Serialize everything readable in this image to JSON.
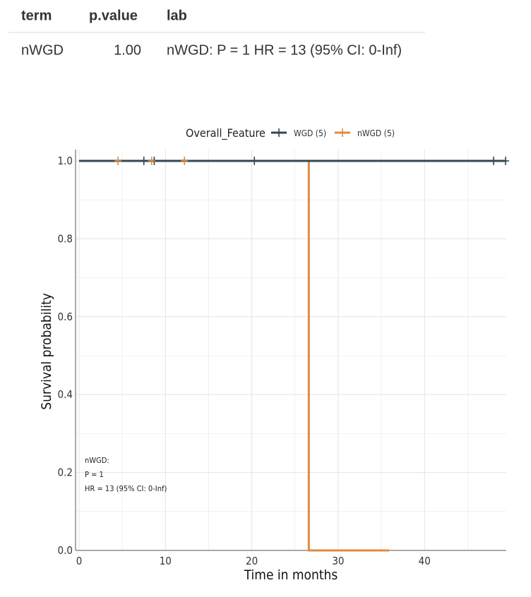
{
  "table": {
    "headers": {
      "term": "term",
      "p_value": "p.value",
      "lab": "lab"
    },
    "rows": [
      {
        "term": "nWGD",
        "p_value": "1.00",
        "lab": "nWGD: P = 1 HR = 13 (95% CI: 0-Inf)"
      }
    ]
  },
  "chart_data": {
    "type": "line",
    "subtype": "kaplan-meier step",
    "xlabel": "Time in months",
    "ylabel": "Survival probability",
    "xlim": [
      0,
      50
    ],
    "ylim": [
      0,
      1
    ],
    "x_ticks": [
      0,
      10,
      20,
      30,
      40
    ],
    "y_ticks": [
      0.0,
      0.2,
      0.4,
      0.6,
      0.8,
      1.0
    ],
    "y_tick_labels": [
      "0.0",
      "0.2",
      "0.4",
      "0.6",
      "0.8",
      "1.0"
    ],
    "grid": true,
    "legend": {
      "title": "Overall_Feature",
      "position": "top"
    },
    "series": [
      {
        "name": "WGD (5)",
        "color": "#34474f",
        "steps": [
          [
            0,
            1.0
          ],
          [
            50,
            1.0
          ]
        ],
        "censor_times": [
          7.5,
          8.7,
          20.3,
          48.0,
          50
        ]
      },
      {
        "name": "nWGD (5)",
        "color": "#e08b3e",
        "steps": [
          [
            0,
            1.0
          ],
          [
            26.6,
            1.0
          ],
          [
            26.6,
            0.0
          ],
          [
            35.9,
            0.0
          ]
        ],
        "censor_times": [
          4.5,
          8.4,
          12.2
        ]
      }
    ],
    "annotation": {
      "lines": [
        "nWGD:",
        "P = 1",
        "HR = 13 (95% CI: 0-Inf)"
      ]
    }
  }
}
